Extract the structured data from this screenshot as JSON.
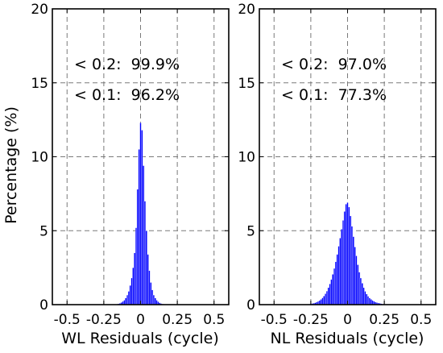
{
  "figure": {
    "ylabel": "Percentage (%)"
  },
  "chart_data": [
    {
      "type": "bar",
      "xlabel": "WL Residuals (cycle)",
      "ylabel": "Percentage (%)",
      "xlim": [
        -0.6,
        0.6
      ],
      "ylim": [
        0,
        20
      ],
      "xticks": [
        -0.5,
        -0.25,
        0,
        0.25,
        0.5
      ],
      "xtick_labels": [
        "-0.5",
        "-0.25",
        "0",
        "0.25",
        "0.5"
      ],
      "yticks": [
        0,
        5,
        10,
        15,
        20
      ],
      "ytick_labels": [
        "0",
        "5",
        "10",
        "15",
        "20"
      ],
      "grid": true,
      "bar_color": "#0000ff",
      "annotations": [
        "< 0.2:  99.9%",
        "< 0.1:  96.2%"
      ],
      "bin_width": 0.01,
      "x": [
        -0.16,
        -0.15,
        -0.14,
        -0.13,
        -0.12,
        -0.11,
        -0.1,
        -0.09,
        -0.08,
        -0.07,
        -0.06,
        -0.05,
        -0.04,
        -0.03,
        -0.02,
        -0.01,
        0.0,
        0.01,
        0.02,
        0.03,
        0.04,
        0.05,
        0.06,
        0.07,
        0.08,
        0.09,
        0.1,
        0.11,
        0.12,
        0.13,
        0.14,
        0.15,
        0.16
      ],
      "values": [
        0.03,
        0.06,
        0.1,
        0.15,
        0.22,
        0.3,
        0.45,
        0.65,
        0.9,
        1.3,
        1.8,
        2.5,
        3.5,
        5.2,
        7.8,
        10.5,
        12.3,
        11.8,
        9.4,
        7.0,
        5.0,
        3.4,
        2.3,
        1.5,
        1.0,
        0.65,
        0.45,
        0.3,
        0.2,
        0.13,
        0.08,
        0.05,
        0.03
      ]
    },
    {
      "type": "bar",
      "xlabel": "NL Residuals (cycle)",
      "ylabel": "",
      "xlim": [
        -0.6,
        0.6
      ],
      "ylim": [
        0,
        20
      ],
      "xticks": [
        -0.5,
        -0.25,
        0,
        0.25,
        0.5
      ],
      "xtick_labels": [
        "-0.5",
        "-0.25",
        "0",
        "0.25",
        "0.5"
      ],
      "yticks": [
        0,
        5,
        10,
        15,
        20
      ],
      "ytick_labels": [
        "0",
        "5",
        "10",
        "15",
        "20"
      ],
      "grid": true,
      "bar_color": "#0000ff",
      "annotations": [
        "< 0.2:  97.0%",
        "< 0.1:  77.3%"
      ],
      "bin_width": 0.01,
      "x": [
        -0.26,
        -0.25,
        -0.24,
        -0.23,
        -0.22,
        -0.21,
        -0.2,
        -0.19,
        -0.18,
        -0.17,
        -0.16,
        -0.15,
        -0.14,
        -0.13,
        -0.12,
        -0.11,
        -0.1,
        -0.09,
        -0.08,
        -0.07,
        -0.06,
        -0.05,
        -0.04,
        -0.03,
        -0.02,
        -0.01,
        0.0,
        0.01,
        0.02,
        0.03,
        0.04,
        0.05,
        0.06,
        0.07,
        0.08,
        0.09,
        0.1,
        0.11,
        0.12,
        0.13,
        0.14,
        0.15,
        0.16,
        0.17,
        0.18,
        0.19,
        0.2,
        0.21,
        0.22,
        0.23,
        0.24
      ],
      "values": [
        0.04,
        0.06,
        0.08,
        0.1,
        0.13,
        0.17,
        0.22,
        0.28,
        0.36,
        0.46,
        0.58,
        0.74,
        0.92,
        1.15,
        1.4,
        1.7,
        2.05,
        2.45,
        2.9,
        3.4,
        3.95,
        4.5,
        5.1,
        5.7,
        6.3,
        6.8,
        6.9,
        6.6,
        6.0,
        5.3,
        4.6,
        3.9,
        3.3,
        2.7,
        2.2,
        1.8,
        1.45,
        1.15,
        0.9,
        0.72,
        0.57,
        0.45,
        0.36,
        0.29,
        0.23,
        0.18,
        0.14,
        0.11,
        0.09,
        0.07,
        0.05
      ]
    }
  ]
}
